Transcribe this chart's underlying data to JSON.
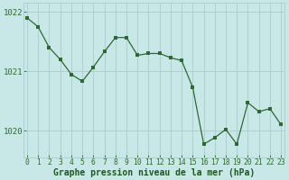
{
  "x": [
    0,
    1,
    2,
    3,
    4,
    5,
    6,
    7,
    8,
    9,
    10,
    11,
    12,
    13,
    14,
    15,
    16,
    17,
    18,
    19,
    20,
    21,
    22,
    23
  ],
  "y": [
    1021.9,
    1021.75,
    1021.4,
    1021.2,
    1020.95,
    1020.83,
    1021.07,
    1021.33,
    1021.57,
    1021.57,
    1021.27,
    1021.3,
    1021.3,
    1021.23,
    1021.18,
    1020.73,
    1019.77,
    1019.88,
    1020.02,
    1019.77,
    1020.47,
    1020.32,
    1020.37,
    1020.1
  ],
  "line_color": "#2d6a2d",
  "marker_color": "#2d6a2d",
  "bg_color": "#c8e8e8",
  "grid_color": "#aacccc",
  "xlabel": "Graphe pression niveau de la mer (hPa)",
  "xlabel_color": "#1a5a1a",
  "ylim": [
    1019.55,
    1022.15
  ],
  "yticks": [
    1020,
    1021,
    1022
  ],
  "xticks": [
    0,
    1,
    2,
    3,
    4,
    5,
    6,
    7,
    8,
    9,
    10,
    11,
    12,
    13,
    14,
    15,
    16,
    17,
    18,
    19,
    20,
    21,
    22,
    23
  ],
  "tick_fontsize": 5.8,
  "ylabel_fontsize": 6.5,
  "xlabel_fontsize": 7.0
}
